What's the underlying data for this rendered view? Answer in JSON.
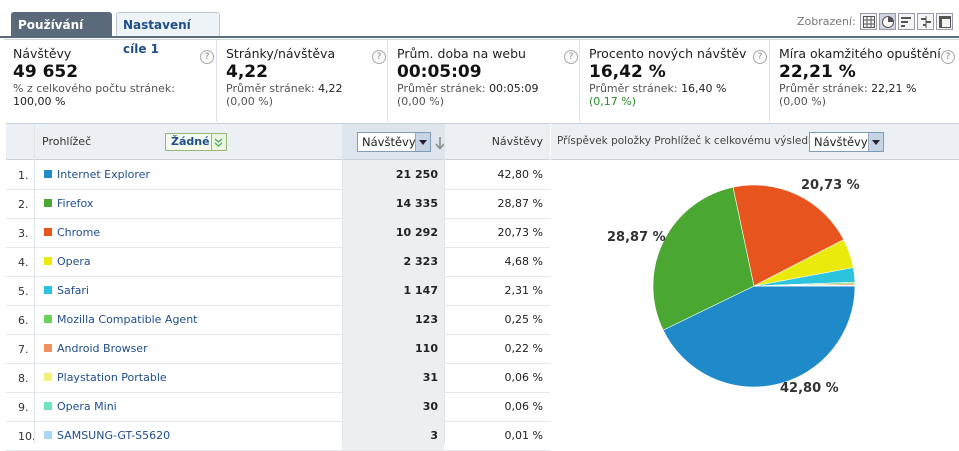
{
  "tabs": [
    {
      "label": "Používání webu",
      "active": true
    },
    {
      "label": "Nastavení cíle 1",
      "active": false
    }
  ],
  "view": {
    "label": "Zobrazení:",
    "icons": [
      "table-view-icon",
      "pie-view-icon",
      "bar-view-icon",
      "comparison-view-icon",
      "pivot-view-icon"
    ],
    "selected": "pie-view-icon"
  },
  "metrics": [
    {
      "name": "Návštěvy",
      "value": "49 652",
      "sub1": "% z celkového počtu stránek:",
      "sub2": "100,00 %"
    },
    {
      "name": "Stránky/návštěva",
      "value": "4,22",
      "sub1": "Průměr stránek: ",
      "sub1b": "4,22",
      "sub2": "(0,00 %)"
    },
    {
      "name": "Prům. doba na webu",
      "value": "00:05:09",
      "sub1": "Průměr stránek: ",
      "sub1b": "00:05:09",
      "sub2": "(0,00 %)"
    },
    {
      "name": "Procento nových návštěv",
      "value": "16,42 %",
      "sub1": "Průměr stránek: ",
      "sub1b": "16,40 %",
      "sub2": "(0,17 %)"
    },
    {
      "name": "Míra okamžitého opuštění",
      "value": "22,21 %",
      "sub1": "Průměr stránek: ",
      "sub1b": "22,21 %",
      "sub2": "(0,00 %)"
    }
  ],
  "table": {
    "dimension_header": "Prohlížeč",
    "segment_select": "Žádné",
    "metric_select": "Návštěvy",
    "col_header": "Návštěvy",
    "rows": [
      {
        "idx": "1.",
        "name": "Internet Explorer",
        "visits": "21 250",
        "pct": "42,80 %",
        "color": "#1f8ac9"
      },
      {
        "idx": "2.",
        "name": "Firefox",
        "visits": "14 335",
        "pct": "28,87 %",
        "color": "#4aa832"
      },
      {
        "idx": "3.",
        "name": "Chrome",
        "visits": "10 292",
        "pct": "20,73 %",
        "color": "#e8541e"
      },
      {
        "idx": "4.",
        "name": "Opera",
        "visits": "2 323",
        "pct": "4,68 %",
        "color": "#eaea0c"
      },
      {
        "idx": "5.",
        "name": "Safari",
        "visits": "1 147",
        "pct": "2,31 %",
        "color": "#2cc4dd"
      },
      {
        "idx": "6.",
        "name": "Mozilla Compatible Agent",
        "visits": "123",
        "pct": "0,25 %",
        "color": "#6ad15a"
      },
      {
        "idx": "7.",
        "name": "Android Browser",
        "visits": "110",
        "pct": "0,22 %",
        "color": "#f09060"
      },
      {
        "idx": "8.",
        "name": "Playstation Portable",
        "visits": "31",
        "pct": "0,06 %",
        "color": "#f4f07a"
      },
      {
        "idx": "9.",
        "name": "Opera Mini",
        "visits": "30",
        "pct": "0,06 %",
        "color": "#6ee6c0"
      },
      {
        "idx": "10.",
        "name": "SAMSUNG-GT-S5620",
        "visits": "3",
        "pct": "0,01 %",
        "color": "#a8d8f0"
      }
    ]
  },
  "chart": {
    "header_text": "Příspěvek položky Prohlížeč k celkovému výsledku:",
    "metric_select": "Návštěvy"
  },
  "chart_data": {
    "type": "pie",
    "categories": [
      "Internet Explorer",
      "Firefox",
      "Chrome",
      "Opera",
      "Safari",
      "Mozilla Compatible Agent",
      "Android Browser",
      "Playstation Portable",
      "Opera Mini",
      "SAMSUNG-GT-S5620"
    ],
    "values": [
      42.8,
      28.87,
      20.73,
      4.68,
      2.31,
      0.25,
      0.22,
      0.06,
      0.06,
      0.01
    ],
    "colors": [
      "#1f8ac9",
      "#4aa832",
      "#e8541e",
      "#eaea0c",
      "#2cc4dd",
      "#6ad15a",
      "#f09060",
      "#f4f07a",
      "#6ee6c0",
      "#a8d8f0"
    ],
    "labels": {
      "0": "42,80 %",
      "1": "28,87 %",
      "2": "20,73 %"
    }
  }
}
